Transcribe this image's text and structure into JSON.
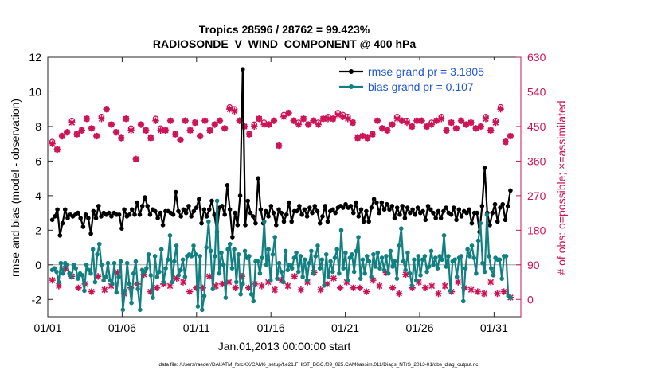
{
  "chart_data": {
    "type": "line",
    "title_line1": "Tropics 28596 / 28762 = 99.423%",
    "title_line2": "RADIOSONDE_V_WIND_COMPONENT @ 400 hPa",
    "xlabel": "Jan.01,2013 00:00:00 start",
    "ylabel_left": "rmse and bias (model - observation)",
    "ylabel_right": "# of obs: o=possible; ×=assimilated",
    "footer": "data file: /Users/raeder/DAI/ATM_forcXX/CAM6_setup/f.e21.FHIST_BGC.f09_025.CAM6assim.011/Diags_NTrS_2013-01/obs_diag_output.nc",
    "xlim": [
      0,
      31.8
    ],
    "ylim_left": [
      -3,
      12
    ],
    "ylim_right": [
      -45,
      630
    ],
    "x_ticks": [
      0,
      5,
      10,
      15,
      20,
      25,
      30
    ],
    "x_tick_labels": [
      "01/01",
      "01/06",
      "01/11",
      "01/16",
      "01/21",
      "01/26",
      "01/31"
    ],
    "y_left_ticks": [
      -2,
      0,
      2,
      4,
      6,
      8,
      10,
      12
    ],
    "y_left_tick_labels": [
      "-2",
      "0",
      "2",
      "4",
      "6",
      "8",
      "10",
      "12"
    ],
    "y_right_ticks": [
      0,
      90,
      180,
      270,
      360,
      450,
      540,
      630
    ],
    "y_right_tick_labels": [
      "0",
      "90",
      "180",
      "270",
      "360",
      "450",
      "540",
      "630"
    ],
    "series": [
      {
        "name": "rmse",
        "legend": "rmse grand pr = 3.1805",
        "color": "#000000",
        "axis": "left",
        "values": [
          2.6,
          2.8,
          3.2,
          1.7,
          2.4,
          3.2,
          2.7,
          2.9,
          2.8,
          2.9,
          3.0,
          2.7,
          2.2,
          2.9,
          2.7,
          1.8,
          3.1,
          2.7,
          3.4,
          2.8,
          3.0,
          2.9,
          3.0,
          2.8,
          3.0,
          2.9,
          2.9,
          2.1,
          3.2,
          2.8,
          2.9,
          3.2,
          2.9,
          3.6,
          2.9,
          3.4,
          3.9,
          3.4,
          2.9,
          3.2,
          3.1,
          2.7,
          3.0,
          2.3,
          3.1,
          3.1,
          3.0,
          2.9,
          4.2,
          3.1,
          2.8,
          3.2,
          3.0,
          3.4,
          2.8,
          3.1,
          3.3,
          3.8,
          2.4,
          3.2,
          2.8,
          3.2,
          3.7,
          2.9,
          1.9,
          3.3,
          3.4,
          2.9,
          4.6,
          3.2,
          1.6,
          3.0,
          2.3,
          4.0,
          11.3,
          2.3,
          3.7,
          3.0,
          2.8,
          2.4,
          5.0,
          3.2,
          2.4,
          3.1,
          2.8,
          3.4,
          3.0,
          2.3,
          3.2,
          3.0,
          2.5,
          2.9,
          3.6,
          2.5,
          3.1,
          3.1,
          3.4,
          2.9,
          3.2,
          2.8,
          3.3,
          3.0,
          3.4,
          3.1,
          2.4,
          2.8,
          3.4,
          2.5,
          3.1,
          3.2,
          3.0,
          3.3,
          3.4,
          3.3,
          3.5,
          3.3,
          3.4,
          3.0,
          3.6,
          2.8,
          3.2,
          2.5,
          3.1,
          2.5,
          3.3,
          3.8,
          3.6,
          3.0,
          3.6,
          3.2,
          3.5,
          3.2,
          3.4,
          2.7,
          3.3,
          2.9,
          3.4,
          2.7,
          3.3,
          3.0,
          3.2,
          2.9,
          3.3,
          3.0,
          3.1,
          2.6,
          3.4,
          3.2,
          3.0,
          2.7,
          3.1,
          2.7,
          3.1,
          3.3,
          3.0,
          2.9,
          3.3,
          2.6,
          3.2,
          2.8,
          3.1,
          3.0,
          3.2,
          2.4,
          3.0,
          3.0,
          1.9,
          3.4,
          5.6,
          3.0,
          2.3,
          3.0,
          3.5,
          2.5,
          3.3,
          3.5,
          2.6,
          3.4,
          4.3
        ]
      },
      {
        "name": "bias",
        "legend": "bias grand pr = 0.107",
        "color": "#128080",
        "axis": "left",
        "values": [
          -0.3,
          -0.2,
          -0.4,
          -1.0,
          0.1,
          -0.5,
          0.1,
          0.0,
          -0.5,
          -0.7,
          0.0,
          -0.2,
          -0.8,
          -0.5,
          -0.6,
          -1.5,
          0.0,
          -0.3,
          -0.5,
          0.9,
          -1.0,
          0.6,
          1.2,
          0.0,
          -0.9,
          -0.7,
          0.1,
          -0.9,
          -1.1,
          0.1,
          -1.6,
          -0.7,
          0.2,
          -2.6,
          -1.5,
          0.1,
          -1.1,
          -2.2,
          -0.5,
          0.2,
          -1.4,
          -2.6,
          -0.3,
          -0.4,
          -0.2,
          0.6,
          -0.6,
          -1.9,
          0.5,
          -0.7,
          -0.4,
          0.9,
          -1.0,
          -0.2,
          0.3,
          1.7,
          -1.0,
          0.2,
          1.1,
          -0.6,
          -0.3,
          0.3,
          -0.7,
          0.5,
          0.6,
          0.5,
          1.1,
          0.6,
          -2.4,
          0.5,
          -2.6,
          -1.8,
          1.0,
          2.5,
          0.8,
          -1.4,
          0.5,
          3.7,
          -0.5,
          0.7,
          0.0,
          -1.9,
          0.9,
          1.2,
          -0.2,
          0.9,
          -1.0,
          0.6,
          -1.7,
          -1.1,
          0.8,
          0.4,
          0.5,
          -1.7,
          -2.1,
          0.2,
          0.2,
          -0.5,
          0.4,
          2.5,
          0.0,
          0.9,
          -0.9,
          0.6,
          1.6,
          -0.8,
          0.1,
          -0.4,
          -1.0,
          0.8,
          -0.3,
          0.0,
          -0.2,
          0.4,
          0.7,
          -0.4,
          0.5,
          -0.7,
          0.3,
          -0.9,
          0.1,
          0.8,
          -0.5,
          0.5,
          1.1,
          -0.2,
          0.3,
          -1.2,
          0.6,
          -0.7,
          0.2,
          -0.4,
          0.4,
          0.9,
          -0.5,
          2.0,
          -0.2,
          0.7,
          -0.9,
          0.4,
          0.6,
          -0.4,
          0.8,
          1.6,
          -0.8,
          0.3,
          -0.5,
          0.5,
          0.2,
          -0.7,
          0.6,
          -0.1,
          0.7,
          -0.2,
          0.4,
          -0.3,
          0.5,
          -0.5,
          0.8,
          -0.1,
          0.2,
          -0.8,
          1.1,
          2.1,
          0.2,
          -0.3,
          0.7,
          -0.5,
          -1.2,
          0.3,
          -0.9,
          0.5,
          -0.6,
          0.3,
          0.5,
          -0.4,
          -0.1,
          0.8,
          0.0,
          0.4,
          -0.2,
          0.5,
          0.3,
          1.7,
          -0.1,
          0.5,
          -1.5,
          0.2,
          0.3,
          -0.7,
          0.4,
          0.5,
          -2.1,
          -0.2,
          0.9,
          0.5,
          1.1,
          0.4,
          -0.5,
          1.4,
          2.4,
          0.1,
          -0.4,
          2.9,
          0.5,
          -0.2,
          -0.6,
          0.4,
          0.3,
          0.3,
          -0.8,
          0.5,
          0.5,
          -1.8,
          -1.9
        ]
      },
      {
        "name": "obs_possible",
        "marker": "o",
        "color": "#cc1155",
        "axis": "right",
        "values": [
          410,
          390,
          425,
          435,
          465,
          430,
          440,
          470,
          445,
          425,
          475,
          495,
          455,
          435,
          420,
          470,
          445,
          365,
          455,
          440,
          420,
          470,
          445,
          440,
          465,
          430,
          415,
          465,
          440,
          460,
          425,
          465,
          440,
          455,
          465,
          445,
          500,
          495,
          465,
          450,
          430,
          455,
          470,
          460,
          455,
          465,
          400,
          480,
          485,
          465,
          460,
          470,
          455,
          465,
          460,
          470,
          475,
          470,
          485,
          480,
          475,
          460,
          420,
          425,
          420,
          430,
          465,
          445,
          440,
          455,
          475,
          465,
          465,
          450,
          465,
          465,
          450,
          460,
          465,
          475,
          440,
          460,
          445,
          465,
          455,
          460,
          445,
          450,
          475,
          440,
          465,
          500,
          410,
          425
        ]
      },
      {
        "name": "obs_assimilated",
        "marker": "x",
        "color": "#cc1155",
        "axis": "right",
        "values": [
          405,
          390,
          425,
          435,
          460,
          430,
          440,
          470,
          445,
          425,
          470,
          495,
          455,
          435,
          420,
          470,
          440,
          365,
          455,
          440,
          420,
          465,
          440,
          440,
          465,
          430,
          415,
          465,
          440,
          460,
          425,
          465,
          440,
          455,
          465,
          445,
          495,
          490,
          465,
          450,
          430,
          450,
          470,
          455,
          455,
          465,
          400,
          475,
          485,
          465,
          455,
          470,
          455,
          465,
          455,
          470,
          470,
          470,
          480,
          475,
          470,
          460,
          420,
          425,
          420,
          430,
          465,
          445,
          440,
          455,
          470,
          465,
          460,
          450,
          465,
          465,
          450,
          455,
          465,
          470,
          440,
          460,
          445,
          465,
          455,
          460,
          445,
          450,
          470,
          440,
          460,
          495,
          410,
          425
        ]
      },
      {
        "name": "obs_low",
        "marker": "x",
        "color": "#cc1155",
        "axis": "right",
        "values": [
          50,
          35,
          80,
          60,
          30,
          40,
          20,
          60,
          25,
          35,
          70,
          15,
          30,
          40,
          65,
          20,
          30,
          40,
          35,
          55,
          45,
          20,
          30,
          30,
          60,
          35,
          40,
          45,
          30,
          60,
          30,
          40,
          35,
          45,
          25,
          50,
          35,
          60,
          25,
          45,
          70,
          25,
          40,
          55,
          30,
          45,
          30,
          30,
          20,
          50,
          35,
          70,
          30,
          15,
          65,
          30,
          45,
          30,
          35,
          15,
          35,
          20,
          45,
          30,
          25,
          20,
          15,
          45,
          15,
          20,
          5
        ]
      }
    ],
    "legend_position": "top-right"
  }
}
